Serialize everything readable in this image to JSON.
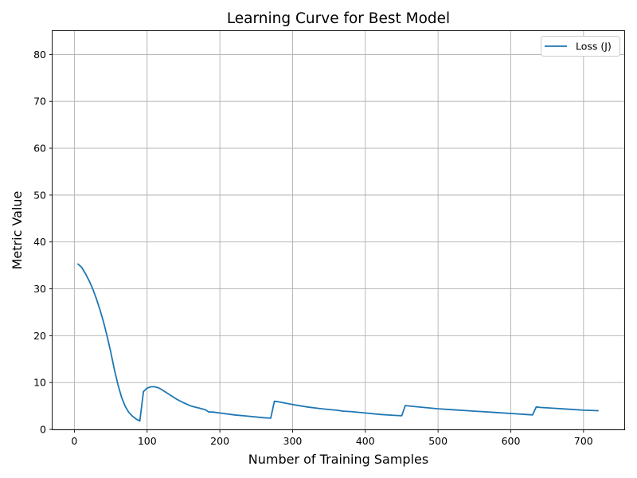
{
  "chart_data": {
    "type": "line",
    "title": "Learning Curve for Best Model",
    "xlabel": "Number of Training Samples",
    "ylabel": "Metric Value",
    "xlim": [
      -30,
      756
    ],
    "ylim": [
      0,
      85
    ],
    "x_ticks": [
      0,
      100,
      200,
      300,
      400,
      500,
      600,
      700
    ],
    "y_ticks": [
      0,
      10,
      20,
      30,
      40,
      50,
      60,
      70,
      80
    ],
    "grid": true,
    "legend_position": "top-right",
    "colors": {
      "series": "#1f77b4",
      "grid": "#b0b0b0"
    },
    "series": [
      {
        "name": "Loss (J)",
        "x": [
          5,
          10,
          15,
          20,
          25,
          30,
          35,
          40,
          45,
          50,
          55,
          60,
          65,
          70,
          75,
          80,
          85,
          90,
          95,
          100,
          105,
          110,
          115,
          120,
          130,
          140,
          150,
          160,
          170,
          180,
          185,
          190,
          200,
          220,
          240,
          260,
          270,
          275,
          280,
          300,
          320,
          340,
          360,
          370,
          380,
          400,
          420,
          440,
          450,
          455,
          460,
          480,
          500,
          520,
          540,
          550,
          560,
          580,
          600,
          620,
          630,
          635,
          640,
          660,
          680,
          700,
          720
        ],
        "y": [
          35.3,
          34.6,
          33.3,
          31.8,
          30.1,
          28.0,
          25.6,
          23.0,
          19.9,
          16.5,
          12.8,
          9.5,
          6.8,
          4.9,
          3.6,
          2.8,
          2.2,
          1.8,
          8.1,
          8.8,
          9.1,
          9.1,
          8.9,
          8.5,
          7.5,
          6.5,
          5.7,
          5.0,
          4.6,
          4.2,
          3.7,
          3.7,
          3.5,
          3.1,
          2.8,
          2.5,
          2.4,
          6.0,
          5.9,
          5.3,
          4.8,
          4.4,
          4.1,
          3.9,
          3.8,
          3.5,
          3.2,
          3.0,
          2.9,
          5.1,
          5.0,
          4.7,
          4.4,
          4.2,
          4.0,
          3.9,
          3.8,
          3.6,
          3.4,
          3.2,
          3.1,
          4.8,
          4.7,
          4.5,
          4.3,
          4.1,
          4.0
        ]
      }
    ]
  }
}
